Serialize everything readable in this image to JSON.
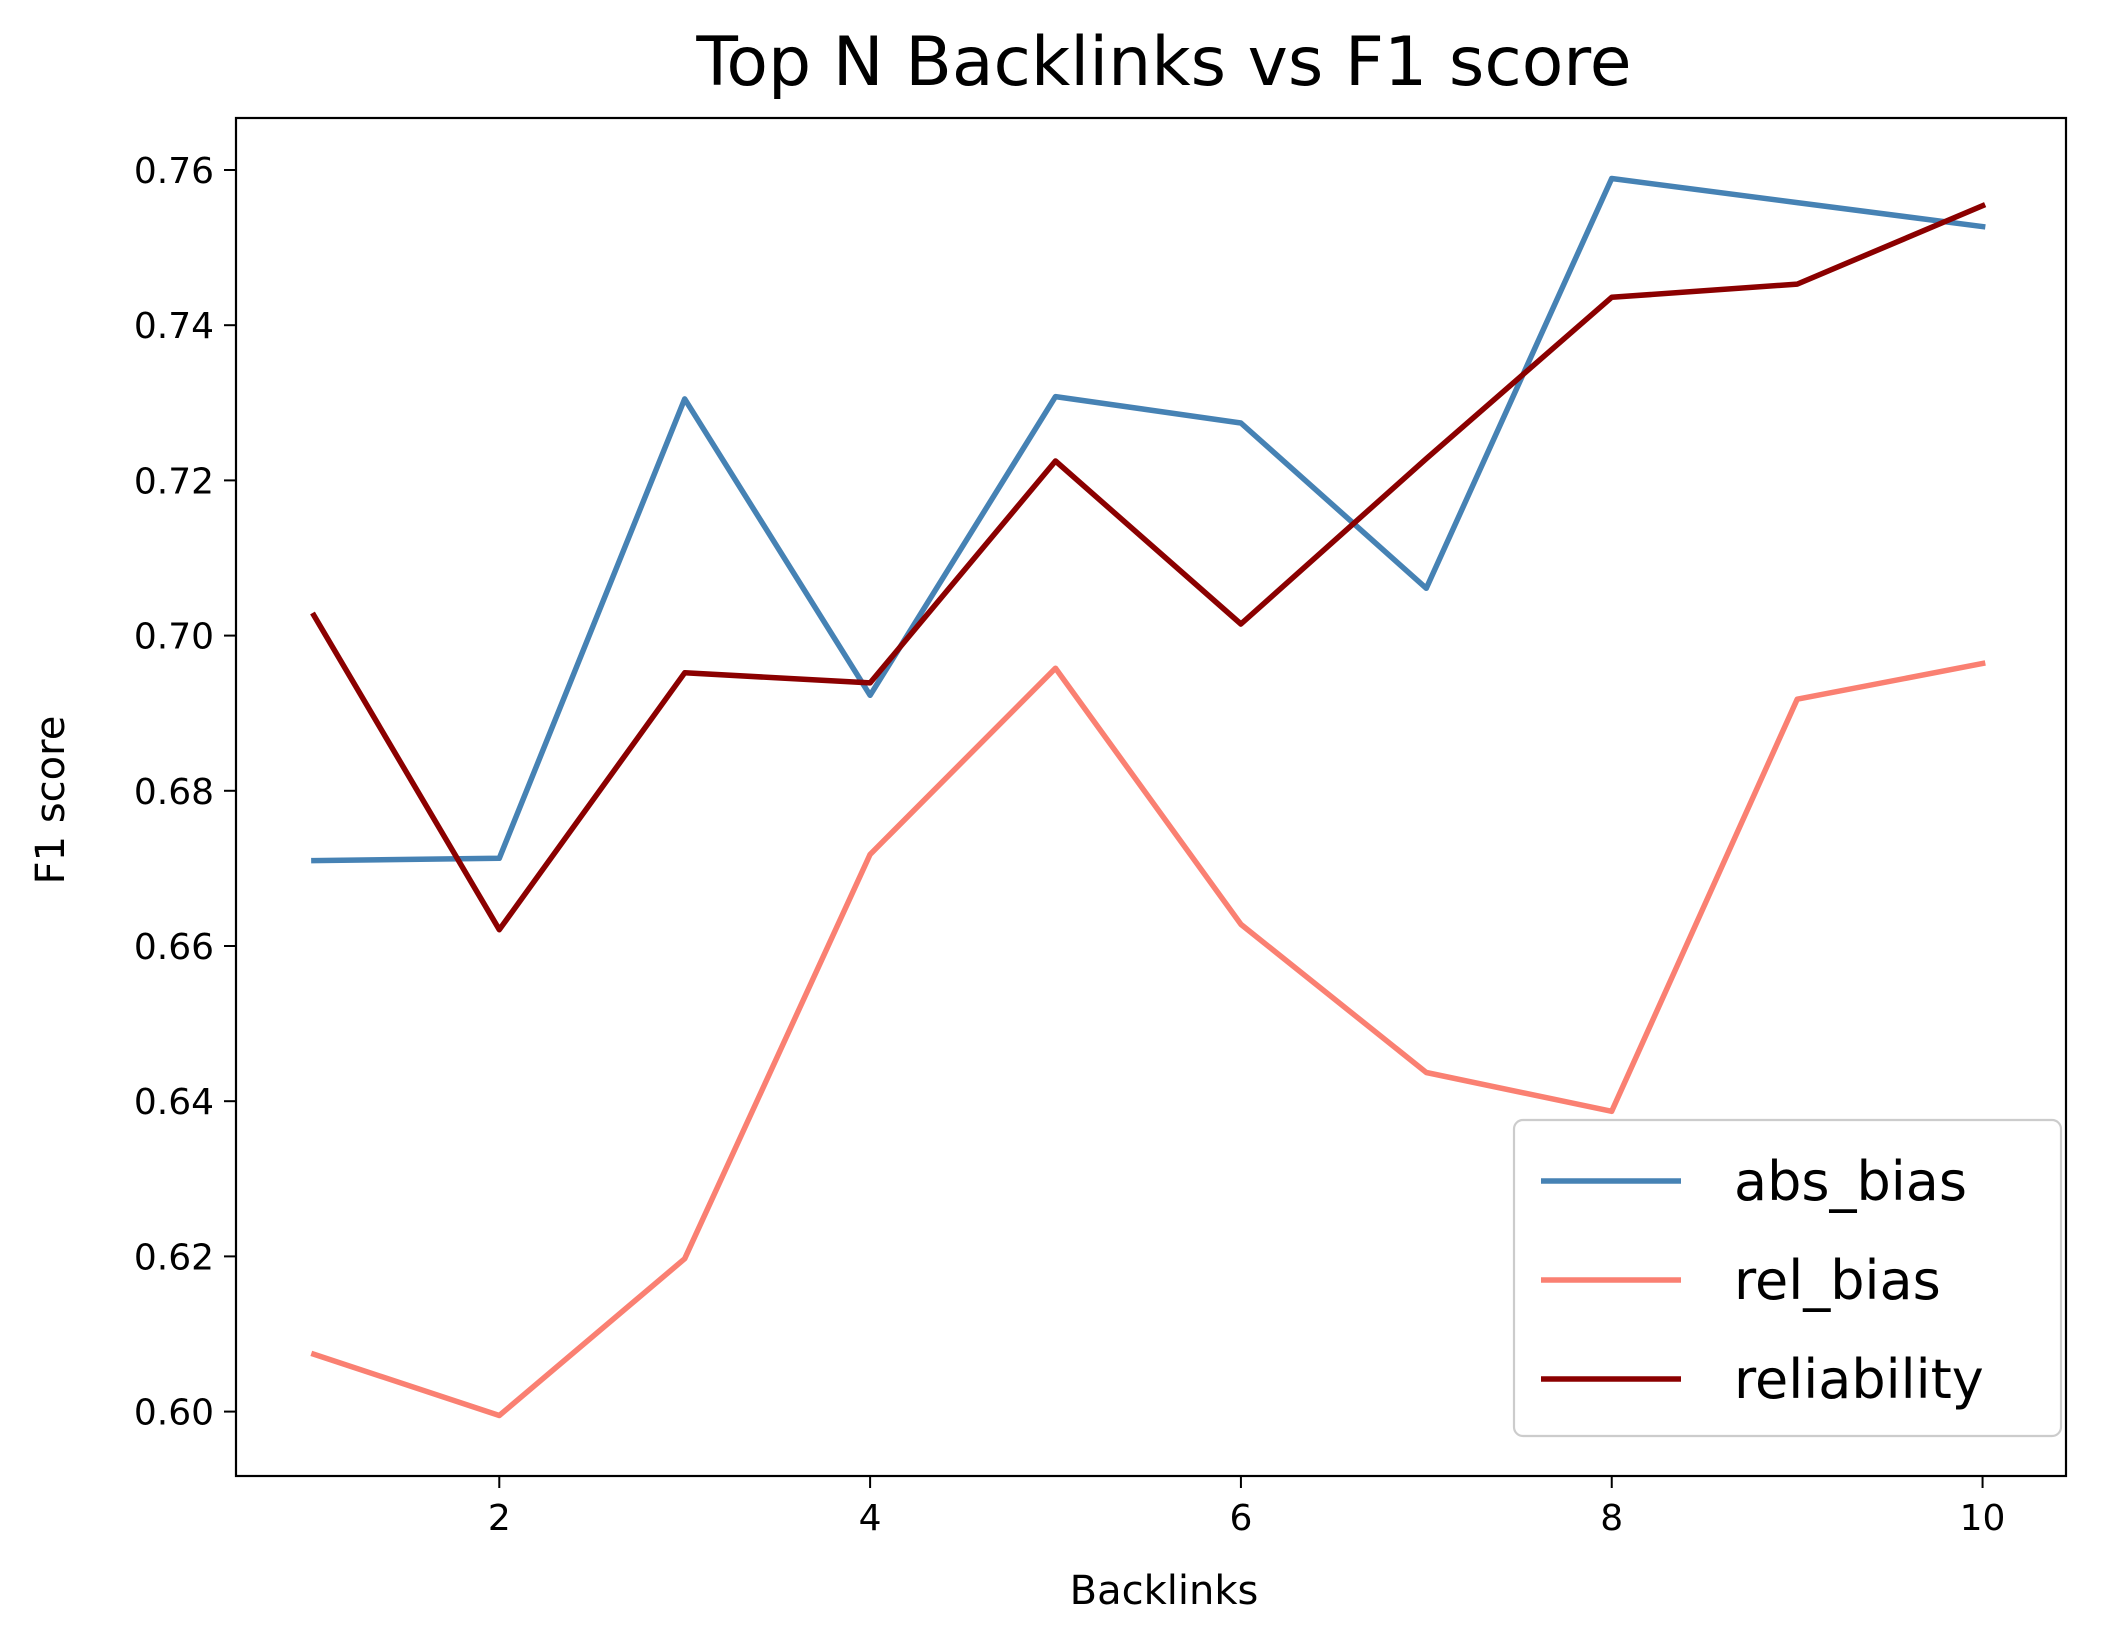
{
  "chart_data": {
    "type": "line",
    "title": "Top N Backlinks vs F1 score",
    "xlabel": "Backlinks",
    "ylabel": "F1 score",
    "x": [
      1,
      2,
      3,
      4,
      5,
      6,
      7,
      8,
      9,
      10
    ],
    "xlim": [
      0.58,
      10.45
    ],
    "ylim": [
      0.5917,
      0.7667
    ],
    "xticks": [
      2,
      4,
      6,
      8,
      10
    ],
    "yticks": [
      0.6,
      0.62,
      0.64,
      0.66,
      0.68,
      0.7,
      0.72,
      0.74,
      0.76
    ],
    "ytick_labels": [
      "0.60",
      "0.62",
      "0.64",
      "0.66",
      "0.68",
      "0.70",
      "0.72",
      "0.74",
      "0.76"
    ],
    "grid": false,
    "legend_position": "lower-right",
    "series": [
      {
        "name": "abs_bias",
        "color": "#4682b4",
        "values": [
          0.671,
          0.6713,
          0.7305,
          0.6923,
          0.7308,
          0.7274,
          0.7061,
          0.7589,
          0.7558,
          0.7527
        ]
      },
      {
        "name": "rel_bias",
        "color": "#fa8072",
        "values": [
          0.6074,
          0.5995,
          0.6197,
          0.6718,
          0.6958,
          0.6628,
          0.6437,
          0.6387,
          0.6918,
          0.6964
        ]
      },
      {
        "name": "reliability",
        "color": "#8b0000",
        "values": [
          0.7026,
          0.6621,
          0.6952,
          0.6939,
          0.7225,
          0.7015,
          0.7228,
          0.7436,
          0.7453,
          0.7554
        ]
      }
    ]
  }
}
